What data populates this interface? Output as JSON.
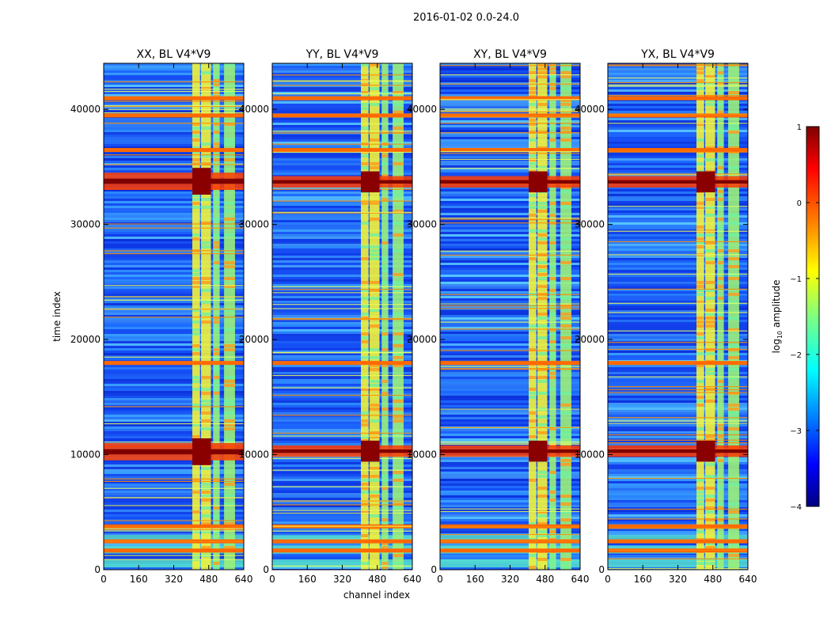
{
  "figure": {
    "suptitle": "2016-01-02 0.0-24.0",
    "xlabel": "channel index",
    "ylabel": "time index"
  },
  "chart_data": [
    {
      "type": "heatmap",
      "title": "XX, BL V4*V9",
      "xlim": [
        0,
        640
      ],
      "ylim": [
        0,
        44000
      ],
      "xticks": [
        "0",
        "160",
        "320",
        "480",
        "640"
      ],
      "yticks": [
        "0",
        "10000",
        "20000",
        "30000",
        "40000"
      ],
      "rfi_channel_bands": [
        [
          405,
          440
        ],
        [
          445,
          490
        ],
        [
          500,
          530
        ],
        [
          550,
          600
        ]
      ],
      "high_flux_time_bands": [
        [
          9500,
          11000
        ],
        [
          33000,
          34500
        ]
      ],
      "flagged_time_rows": [
        1700,
        2500,
        3800,
        18000,
        36500,
        39500,
        41000
      ]
    },
    {
      "type": "heatmap",
      "title": "YY, BL V4*V9",
      "xlim": [
        0,
        640
      ],
      "ylim": [
        0,
        44000
      ],
      "xticks": [
        "0",
        "160",
        "320",
        "480",
        "640"
      ],
      "yticks": [
        "0",
        "10000",
        "20000",
        "30000",
        "40000"
      ],
      "rfi_channel_bands": [
        [
          405,
          440
        ],
        [
          445,
          490
        ],
        [
          500,
          530
        ],
        [
          550,
          600
        ]
      ],
      "high_flux_time_bands": [
        [
          9800,
          10800
        ],
        [
          33200,
          34200
        ]
      ],
      "flagged_time_rows": [
        1700,
        2500,
        3800,
        18000,
        36500,
        39500,
        41000
      ]
    },
    {
      "type": "heatmap",
      "title": "XY, BL V4*V9",
      "xlim": [
        0,
        640
      ],
      "ylim": [
        0,
        44000
      ],
      "xticks": [
        "0",
        "160",
        "320",
        "480",
        "640"
      ],
      "yticks": [
        "0",
        "10000",
        "20000",
        "30000",
        "40000"
      ],
      "rfi_channel_bands": [
        [
          405,
          440
        ],
        [
          445,
          490
        ],
        [
          500,
          530
        ],
        [
          550,
          600
        ]
      ],
      "high_flux_time_bands": [
        [
          9800,
          10800
        ],
        [
          33200,
          34200
        ]
      ],
      "flagged_time_rows": [
        1700,
        2500,
        3800,
        18000,
        36500,
        39500,
        41000
      ]
    },
    {
      "type": "heatmap",
      "title": "YX, BL V4*V9",
      "xlim": [
        0,
        640
      ],
      "ylim": [
        0,
        44000
      ],
      "xticks": [
        "0",
        "160",
        "320",
        "480",
        "640"
      ],
      "yticks": [
        "0",
        "10000",
        "20000",
        "30000",
        "40000"
      ],
      "rfi_channel_bands": [
        [
          405,
          440
        ],
        [
          445,
          490
        ],
        [
          500,
          530
        ],
        [
          550,
          600
        ]
      ],
      "high_flux_time_bands": [
        [
          9800,
          10800
        ],
        [
          33200,
          34200
        ]
      ],
      "flagged_time_rows": [
        1700,
        2500,
        3800,
        18000,
        36500,
        39500,
        41000
      ]
    }
  ],
  "colorbar": {
    "label": "log10 amplitude",
    "range": [
      -4,
      1
    ],
    "ticks": [
      "1",
      "0",
      "−1",
      "−2",
      "−3",
      "−4"
    ],
    "colormap": [
      "#00007f",
      "#0000ff",
      "#007fff",
      "#00ffff",
      "#7fff7f",
      "#ffff00",
      "#ff7f00",
      "#ff0000",
      "#7f0000"
    ]
  }
}
